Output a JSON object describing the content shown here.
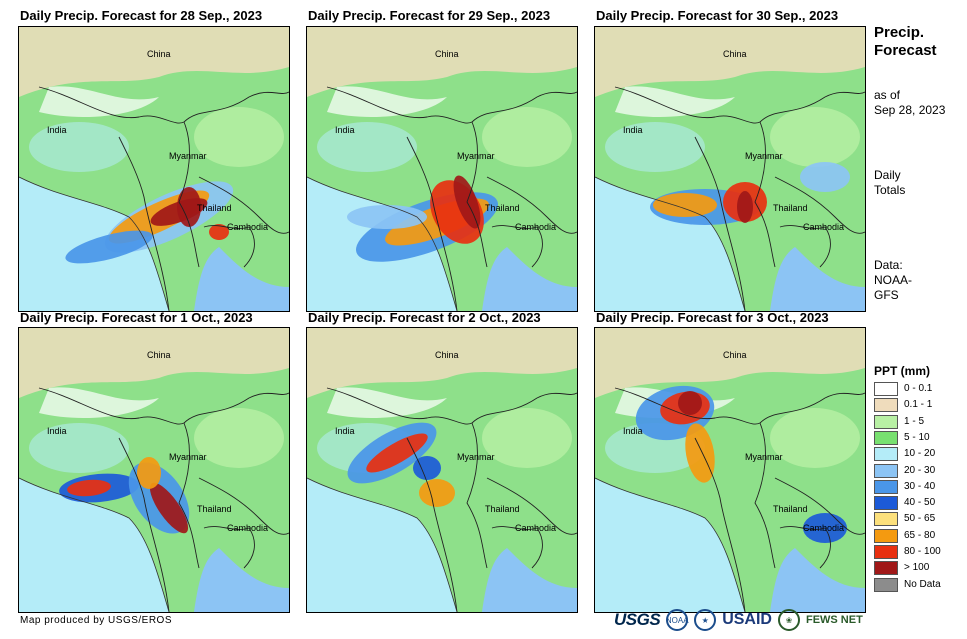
{
  "panels": [
    {
      "title": "Daily Precip. Forecast for 28 Sep., 2023",
      "labels": {
        "china": "China",
        "india": "India",
        "myanmar": "Myanmar",
        "thailand": "Thailand",
        "cambodia": "Cambodia"
      }
    },
    {
      "title": "Daily Precip. Forecast for 29 Sep., 2023",
      "labels": {
        "china": "China",
        "india": "India",
        "myanmar": "Myanmar",
        "thailand": "Thailand",
        "cambodia": "Cambodia"
      }
    },
    {
      "title": "Daily Precip. Forecast for 30 Sep., 2023",
      "labels": {
        "china": "China",
        "india": "India",
        "myanmar": "Myanmar",
        "thailand": "Thailand",
        "cambodia": "Cambodia"
      }
    },
    {
      "title": "Daily Precip. Forecast for 1 Oct., 2023",
      "labels": {
        "china": "China",
        "india": "India",
        "myanmar": "Myanmar",
        "thailand": "Thailand",
        "cambodia": "Cambodia"
      }
    },
    {
      "title": "Daily Precip. Forecast for 2 Oct., 2023",
      "labels": {
        "china": "China",
        "india": "India",
        "myanmar": "Myanmar",
        "thailand": "Thailand",
        "cambodia": "Cambodia"
      }
    },
    {
      "title": "Daily Precip. Forecast for 3 Oct., 2023",
      "labels": {
        "china": "China",
        "india": "India",
        "myanmar": "Myanmar",
        "thailand": "Thailand",
        "cambodia": "Cambodia"
      }
    }
  ],
  "sidebar": {
    "title_line1": "Precip.",
    "title_line2": "Forecast",
    "asof_line1": "as of",
    "asof_line2": "Sep 28, 2023",
    "totals_line1": "Daily",
    "totals_line2": "Totals",
    "data_line1": "Data:",
    "data_line2": "NOAA-",
    "data_line3": "GFS"
  },
  "legend": {
    "title": "PPT (mm)",
    "items": [
      {
        "label": "0 - 0.1",
        "color": "#ffffff"
      },
      {
        "label": "0.1 - 1",
        "color": "#efdcbc"
      },
      {
        "label": "1 - 5",
        "color": "#b8f0a4"
      },
      {
        "label": "5 - 10",
        "color": "#78e070"
      },
      {
        "label": "10 - 20",
        "color": "#b4ecf8"
      },
      {
        "label": "20 - 30",
        "color": "#8cc4f4"
      },
      {
        "label": "30 - 40",
        "color": "#4a96e8"
      },
      {
        "label": "40 - 50",
        "color": "#1c5ad8"
      },
      {
        "label": "50 - 65",
        "color": "#fce07c"
      },
      {
        "label": "65 - 80",
        "color": "#f49a10"
      },
      {
        "label": "80 - 100",
        "color": "#e83010"
      },
      {
        "label": "> 100",
        "color": "#a01818"
      },
      {
        "label": "No Data",
        "color": "#8c8c8c"
      }
    ]
  },
  "footer": {
    "credit": "Map produced by USGS/EROS",
    "logo_usgs": "USGS",
    "logo_noaa": "NOAA",
    "logo_usaid": "USAID",
    "logo_fews": "FEWS NET"
  },
  "colors": {
    "land": "#8ee08a",
    "bay": "#b4ecf8",
    "dry": "#efdcbc",
    "heavy": "#a01818"
  }
}
